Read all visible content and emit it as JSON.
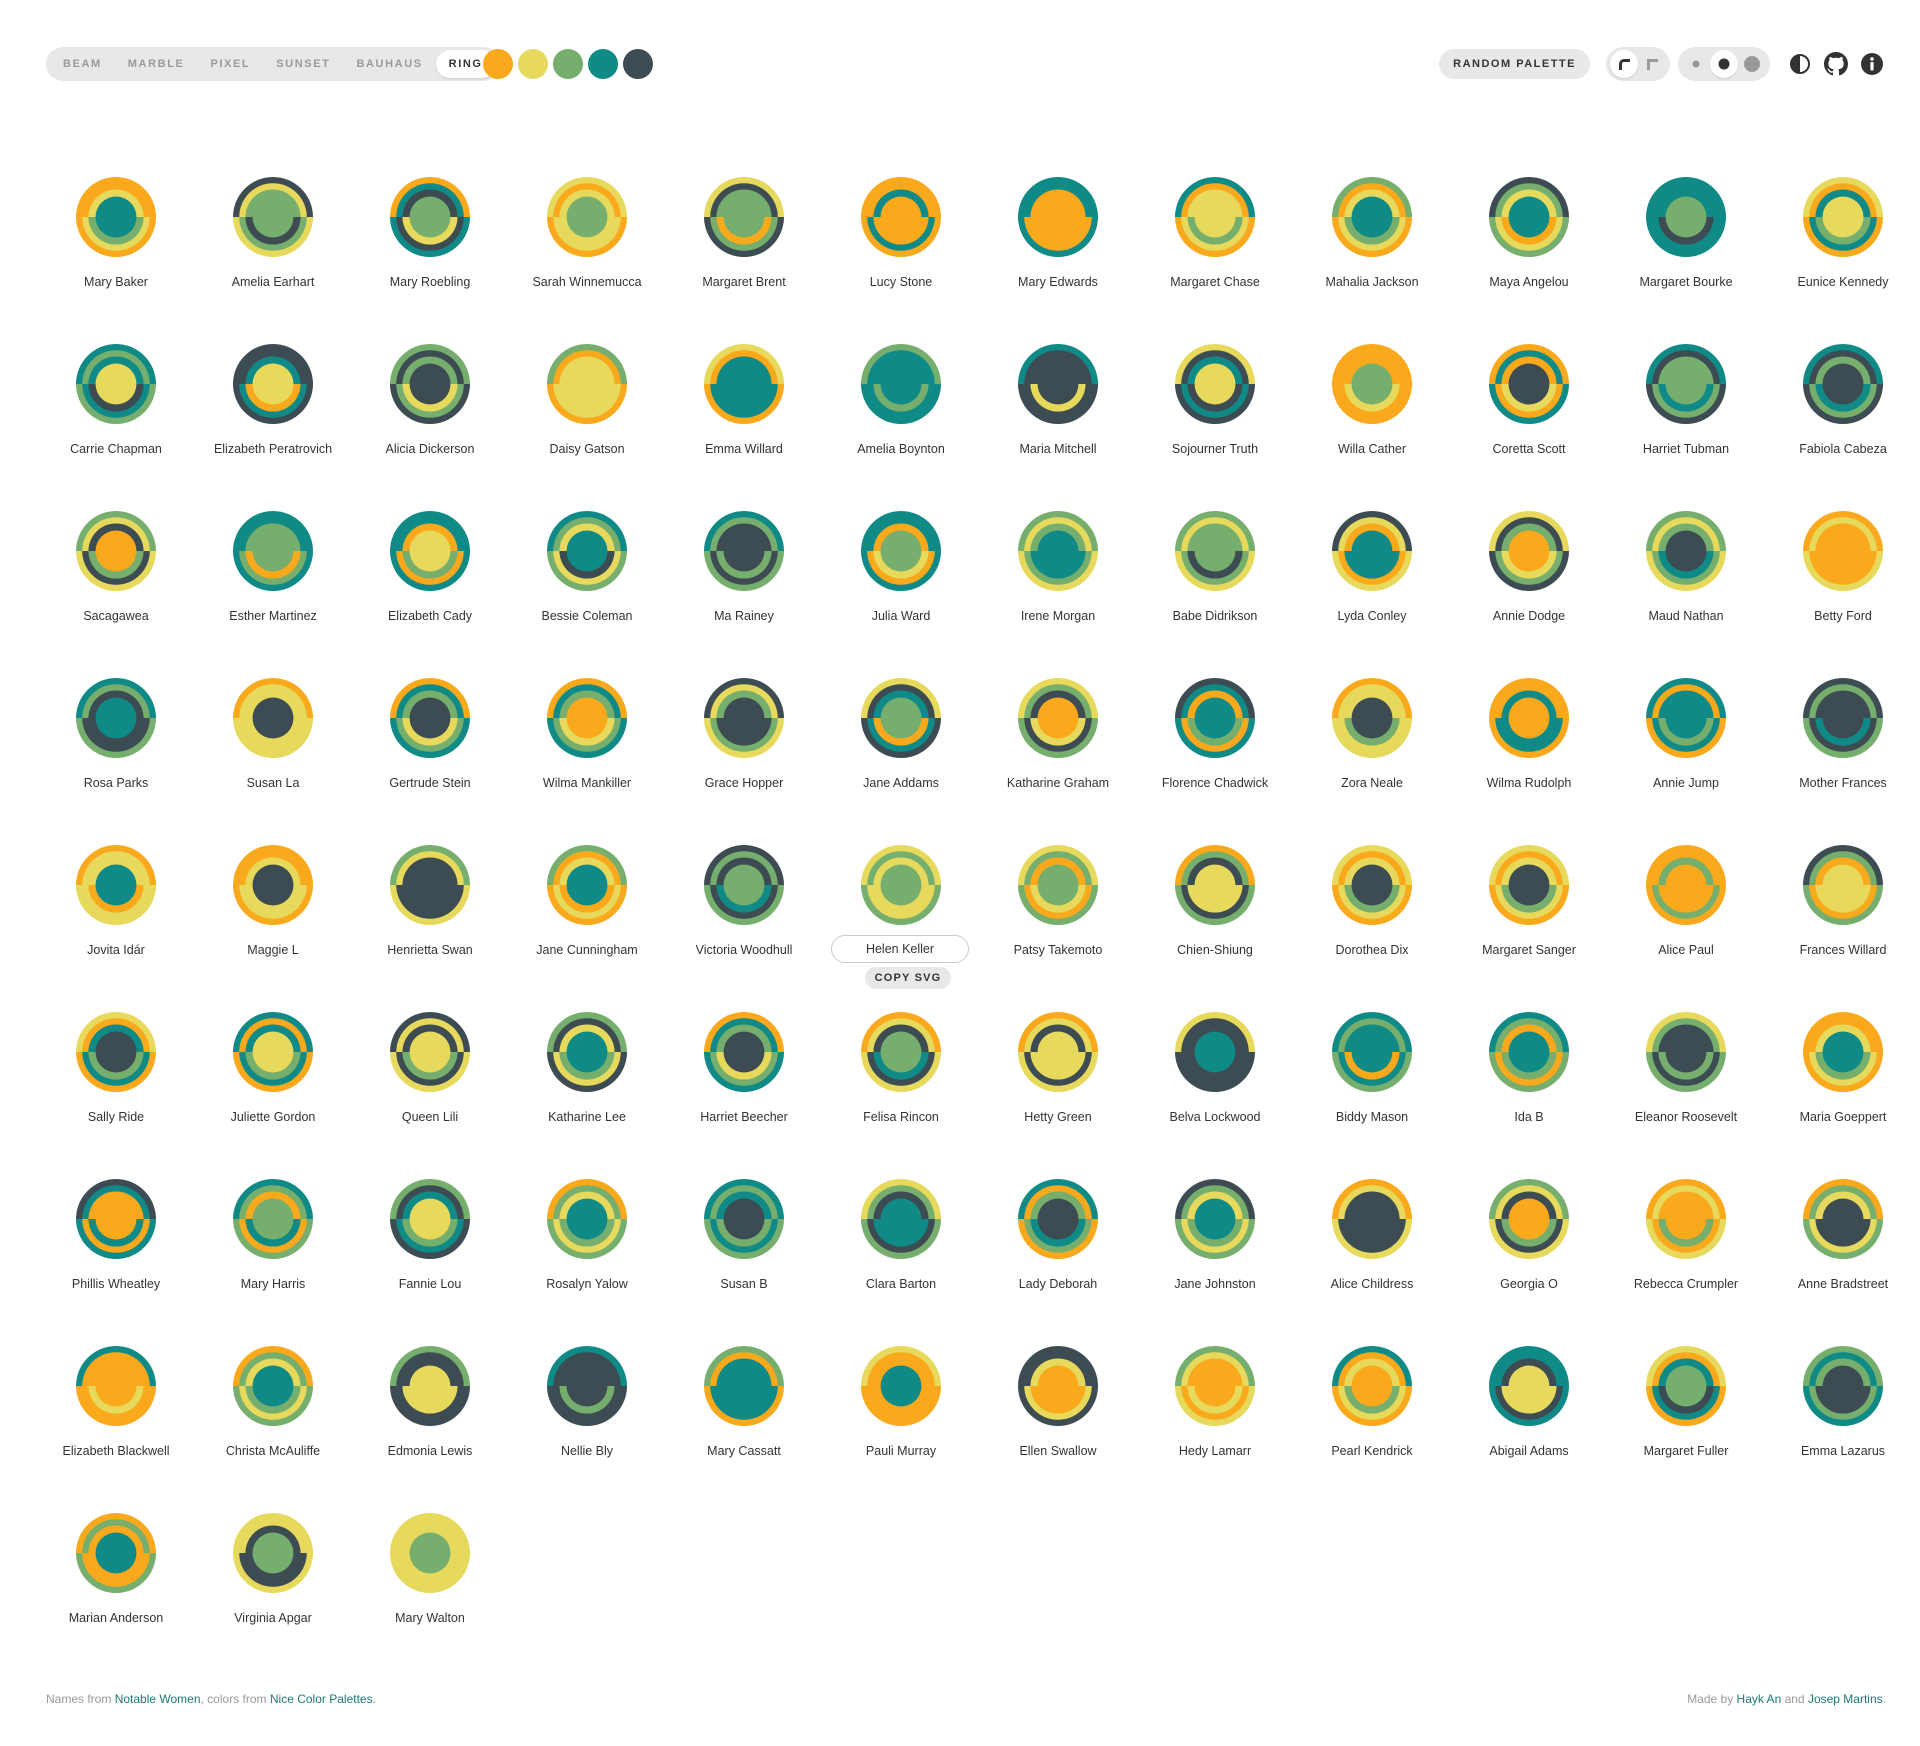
{
  "variants": [
    "BEAM",
    "MARBLE",
    "PIXEL",
    "SUNSET",
    "BAUHAUS",
    "RING"
  ],
  "active_variant": "RING",
  "palette": [
    "#f9a91b",
    "#e6d95c",
    "#76ae6d",
    "#0f8a86",
    "#3d4b52"
  ],
  "controls": {
    "random_palette_label": "RANDOM PALETTE",
    "shape_toggle": [
      "rounded-corner-icon",
      "square-corner-icon"
    ],
    "size_toggle": [
      "small-dot-icon",
      "medium-dot-icon",
      "large-dot-icon"
    ],
    "icons": [
      "contrast-icon",
      "github-icon",
      "info-icon"
    ]
  },
  "avatars": [
    "Mary Baker",
    "Amelia Earhart",
    "Mary Roebling",
    "Sarah Winnemucca",
    "Margaret Brent",
    "Lucy Stone",
    "Mary Edwards",
    "Margaret Chase",
    "Mahalia Jackson",
    "Maya Angelou",
    "Margaret Bourke",
    "Eunice Kennedy",
    "Carrie Chapman",
    "Elizabeth Peratrovich",
    "Alicia Dickerson",
    "Daisy Gatson",
    "Emma Willard",
    "Amelia Boynton",
    "Maria Mitchell",
    "Sojourner Truth",
    "Willa Cather",
    "Coretta Scott",
    "Harriet Tubman",
    "Fabiola Cabeza",
    "Sacagawea",
    "Esther Martinez",
    "Elizabeth Cady",
    "Bessie Coleman",
    "Ma Rainey",
    "Julia Ward",
    "Irene Morgan",
    "Babe Didrikson",
    "Lyda Conley",
    "Annie Dodge",
    "Maud Nathan",
    "Betty Ford",
    "Rosa Parks",
    "Susan La",
    "Gertrude Stein",
    "Wilma Mankiller",
    "Grace Hopper",
    "Jane Addams",
    "Katharine Graham",
    "Florence Chadwick",
    "Zora Neale",
    "Wilma Rudolph",
    "Annie Jump",
    "Mother Frances",
    "Jovita Idár",
    "Maggie L",
    "Henrietta Swan",
    "Jane Cunningham",
    "Victoria Woodhull",
    "Helen Keller",
    "Patsy Takemoto",
    "Chien-Shiung",
    "Dorothea Dix",
    "Margaret Sanger",
    "Alice Paul",
    "Frances Willard",
    "Sally Ride",
    "Juliette Gordon",
    "Queen Lili",
    "Katharine Lee",
    "Harriet Beecher",
    "Felisa Rincon",
    "Hetty Green",
    "Belva Lockwood",
    "Biddy Mason",
    "Ida B",
    "Eleanor Roosevelt",
    "Maria Goeppert",
    "Phillis Wheatley",
    "Mary Harris",
    "Fannie Lou",
    "Rosalyn Yalow",
    "Susan B",
    "Clara Barton",
    "Lady Deborah",
    "Jane Johnston",
    "Alice Childress",
    "Georgia O",
    "Rebecca Crumpler",
    "Anne Bradstreet",
    "Elizabeth Blackwell",
    "Christa McAuliffe",
    "Edmonia Lewis",
    "Nellie Bly",
    "Mary Cassatt",
    "Pauli Murray",
    "Ellen Swallow",
    "Hedy Lamarr",
    "Pearl Kendrick",
    "Abigail Adams",
    "Margaret Fuller",
    "Emma Lazarus",
    "Marian Anderson",
    "Virginia Apgar",
    "Mary Walton"
  ],
  "hovered_avatar": "Helen Keller",
  "copy_svg_label": "COPY SVG",
  "footer": {
    "left_prefix": "Names from ",
    "left_link1": "Notable Women",
    "left_mid": ", colors from ",
    "left_link2": "Nice Color Palettes",
    "left_suffix": ".",
    "right_prefix": "Made by ",
    "right_link1": "Hayk An",
    "right_mid": " and ",
    "right_link2": "Josep Martins",
    "right_suffix": "."
  }
}
